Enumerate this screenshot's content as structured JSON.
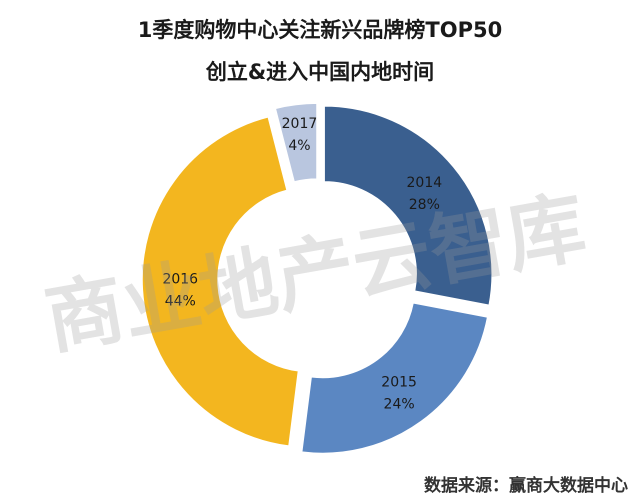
{
  "chart_data": {
    "type": "pie",
    "title_line1": "1季度购物中心关注新兴品牌榜TOP50",
    "title_line2": "创立&进入中国内地时间",
    "categories": [
      "2014",
      "2015",
      "2016",
      "2017"
    ],
    "values": [
      28,
      24,
      44,
      4
    ],
    "value_labels": [
      "28%",
      "24%",
      "44%",
      "4%"
    ],
    "colors": [
      "#3a5f8f",
      "#5b87c2",
      "#f3b61f",
      "#b9c6df"
    ],
    "donut": true,
    "exploded": true
  },
  "watermark": "商业地产云智库",
  "source": "数据来源：赢商大数据中心"
}
